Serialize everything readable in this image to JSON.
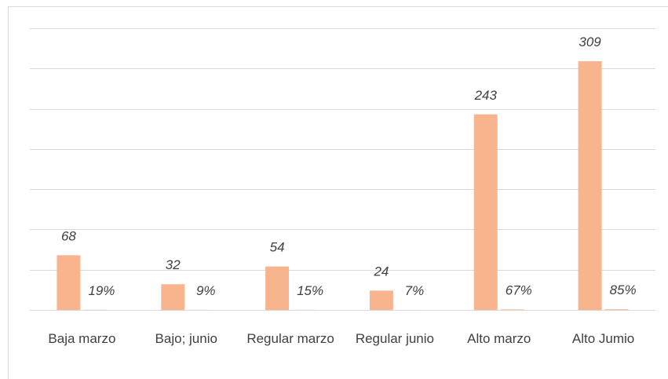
{
  "chart_data": {
    "type": "bar",
    "categories": [
      "Baja marzo",
      "Bajo; junio",
      "Regular marzo",
      "Regular junio",
      "Alto marzo",
      "Alto Jumio"
    ],
    "series": [
      {
        "color": "#f8b58d",
        "values": [
          68,
          32,
          54,
          24,
          243,
          309
        ]
      },
      {
        "color": "#f8b58d",
        "values": [
          0.19,
          0.09,
          0.15,
          0.07,
          0.67,
          0.85
        ],
        "value_labels": [
          "19%",
          "9%",
          "15%",
          "7%",
          "67%",
          "85%"
        ]
      }
    ],
    "ylim": [
      0,
      350
    ],
    "yticks": [
      0,
      50,
      100,
      150,
      200,
      250,
      300,
      350
    ],
    "grid": true
  }
}
